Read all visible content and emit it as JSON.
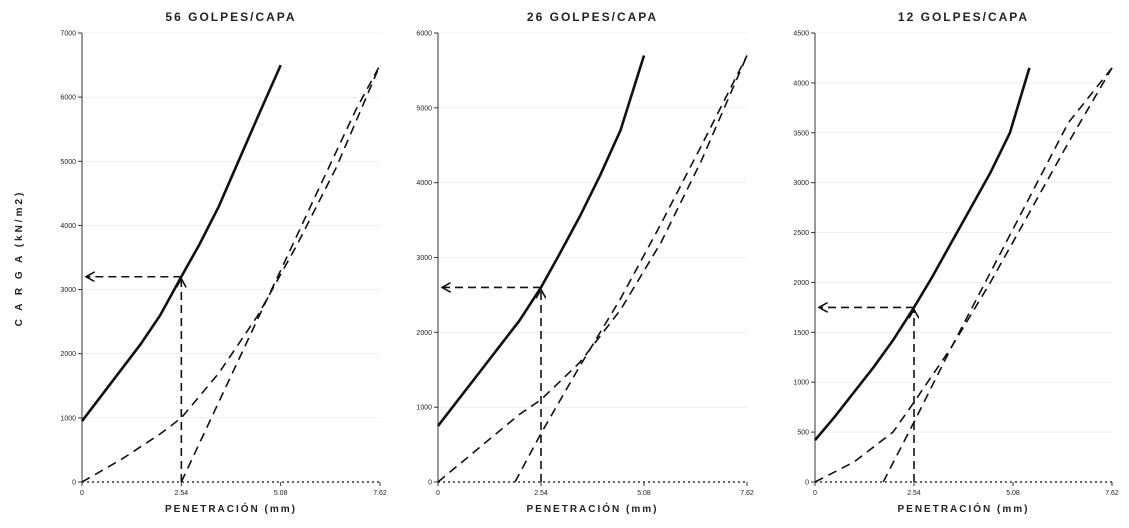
{
  "figure": {
    "ylabel_text": "C A R G A   (kN/m2)"
  },
  "chart_data": [
    {
      "type": "line",
      "title": "56 GOLPES/CAPA",
      "xlabel": "PENETRACIÓN (mm)",
      "ylabel": "CARGA (kN/m2)",
      "xlim": [
        0,
        7.62
      ],
      "ylim": [
        0,
        7000
      ],
      "xticks": [
        0,
        2.54,
        5.08,
        7.62
      ],
      "xtick_labels": [
        "0",
        "2.54",
        "5.08",
        "7.62"
      ],
      "yticks": [
        0,
        1000,
        2000,
        3000,
        4000,
        5000,
        6000,
        7000
      ],
      "ytick_labels": [
        "0",
        "1000",
        "2000",
        "3000",
        "4000",
        "5000",
        "6000",
        "7000"
      ],
      "series": [
        {
          "style": "solid",
          "x": [
            0,
            0.5,
            1.0,
            1.5,
            2.0,
            2.54,
            3.0,
            3.5,
            4.0,
            4.5,
            5.08
          ],
          "y": [
            950,
            1350,
            1750,
            2150,
            2600,
            3200,
            3700,
            4300,
            5000,
            5700,
            6500
          ]
        },
        {
          "style": "dashed",
          "x": [
            0,
            1.0,
            2.0,
            2.54,
            3.5,
            4.5,
            5.5,
            6.5,
            7.62
          ],
          "y": [
            0,
            350,
            750,
            1000,
            1700,
            2600,
            3700,
            4900,
            6500
          ]
        },
        {
          "style": "dashed",
          "x": [
            2.54,
            3.5,
            4.5,
            5.08,
            6.0,
            7.0,
            7.62
          ],
          "y": [
            0,
            1250,
            2550,
            3300,
            4500,
            5800,
            6500
          ]
        }
      ],
      "annotation": {
        "x": 2.54,
        "y": 3200
      }
    },
    {
      "type": "line",
      "title": "26 GOLPES/CAPA",
      "xlabel": "PENETRACIÓN (mm)",
      "ylabel": "",
      "xlim": [
        0,
        7.62
      ],
      "ylim": [
        0,
        6000
      ],
      "xticks": [
        0,
        2.54,
        5.08,
        7.62
      ],
      "xtick_labels": [
        "0",
        "2.54",
        "5.08",
        "7.62"
      ],
      "yticks": [
        0,
        1000,
        2000,
        3000,
        4000,
        5000,
        6000
      ],
      "ytick_labels": [
        "0",
        "1000",
        "2000",
        "3000",
        "4000",
        "5000",
        "6000"
      ],
      "series": [
        {
          "style": "solid",
          "x": [
            0,
            0.5,
            1.0,
            1.5,
            2.0,
            2.54,
            3.0,
            3.5,
            4.0,
            4.5,
            5.08
          ],
          "y": [
            750,
            1100,
            1450,
            1800,
            2150,
            2600,
            3050,
            3550,
            4100,
            4700,
            5700
          ]
        },
        {
          "style": "dashed",
          "x": [
            0,
            1.0,
            2.0,
            2.54,
            3.5,
            4.5,
            5.5,
            6.5,
            7.62
          ],
          "y": [
            0,
            450,
            900,
            1100,
            1600,
            2300,
            3200,
            4300,
            5700
          ]
        },
        {
          "style": "dashed",
          "x": [
            1.9,
            2.54,
            3.5,
            4.5,
            5.5,
            6.5,
            7.62
          ],
          "y": [
            0,
            650,
            1550,
            2450,
            3450,
            4500,
            5700
          ]
        }
      ],
      "annotation": {
        "x": 2.54,
        "y": 2600
      }
    },
    {
      "type": "line",
      "title": "12 GOLPES/CAPA",
      "xlabel": "PENETRACIÓN (mm)",
      "ylabel": "",
      "xlim": [
        0,
        7.62
      ],
      "ylim": [
        0,
        4500
      ],
      "xticks": [
        0,
        2.54,
        5.08,
        7.62
      ],
      "xtick_labels": [
        "0",
        "2.54",
        "5.08",
        "7.62"
      ],
      "yticks": [
        0,
        500,
        1000,
        1500,
        2000,
        2500,
        3000,
        3500,
        4000,
        4500
      ],
      "ytick_labels": [
        "0",
        "500",
        "1000",
        "1500",
        "2000",
        "2500",
        "3000",
        "3500",
        "4000",
        "4500"
      ],
      "series": [
        {
          "style": "solid",
          "x": [
            0,
            0.5,
            1.0,
            1.5,
            2.0,
            2.54,
            3.0,
            3.5,
            4.0,
            4.5,
            5.0,
            5.5
          ],
          "y": [
            420,
            650,
            900,
            1150,
            1420,
            1750,
            2050,
            2400,
            2750,
            3100,
            3500,
            4150
          ]
        },
        {
          "style": "dashed",
          "x": [
            0,
            1.0,
            2.0,
            2.54,
            3.5,
            4.5,
            5.5,
            6.5,
            7.62
          ],
          "y": [
            0,
            200,
            500,
            800,
            1350,
            2000,
            2700,
            3400,
            4150
          ]
        },
        {
          "style": "dashed",
          "x": [
            1.75,
            2.54,
            3.5,
            4.5,
            5.5,
            6.5,
            7.62
          ],
          "y": [
            0,
            600,
            1350,
            2100,
            2850,
            3600,
            4150
          ]
        }
      ],
      "annotation": {
        "x": 2.54,
        "y": 1750
      }
    }
  ]
}
